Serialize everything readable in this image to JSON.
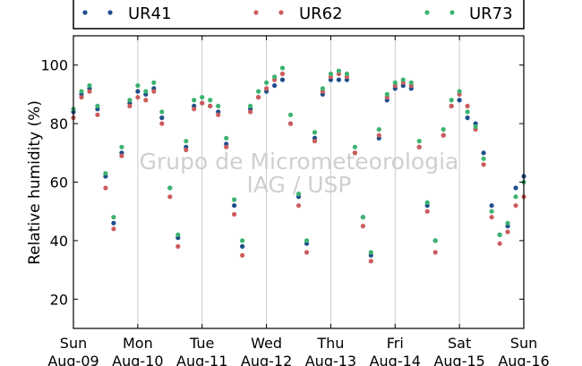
{
  "chart_data": {
    "type": "scatter",
    "title": "",
    "xlabel": "",
    "ylabel": "Relative humidity (%)",
    "ylim": [
      10,
      110
    ],
    "xlim": [
      "2009-08-09T00:00",
      "2009-08-16T00:00"
    ],
    "yticks": [
      20,
      40,
      60,
      80,
      100
    ],
    "xticks": [
      {
        "day": "Sun",
        "date": "Aug-09"
      },
      {
        "day": "Mon",
        "date": "Aug-10"
      },
      {
        "day": "Tue",
        "date": "Aug-11"
      },
      {
        "day": "Wed",
        "date": "Aug-12"
      },
      {
        "day": "Thu",
        "date": "Aug-13"
      },
      {
        "day": "Fri",
        "date": "Aug-14"
      },
      {
        "day": "Sat",
        "date": "Aug-15"
      },
      {
        "day": "Sun",
        "date": "Aug-16"
      }
    ],
    "grid": "vertical",
    "legend": "top, above plot",
    "watermark": [
      "Grupo de Micrometeorologia",
      "IAG / USP"
    ],
    "series": [
      {
        "name": "UR41",
        "color": "#1f4e8c",
        "points": [
          [
            "2009-08-09T00:00",
            84
          ],
          [
            "2009-08-09T03:00",
            90
          ],
          [
            "2009-08-09T06:00",
            92
          ],
          [
            "2009-08-09T09:00",
            85
          ],
          [
            "2009-08-09T12:00",
            62
          ],
          [
            "2009-08-09T15:00",
            46
          ],
          [
            "2009-08-09T18:00",
            70
          ],
          [
            "2009-08-09T21:00",
            87
          ],
          [
            "2009-08-10T00:00",
            91
          ],
          [
            "2009-08-10T03:00",
            90
          ],
          [
            "2009-08-10T06:00",
            92
          ],
          [
            "2009-08-10T09:00",
            82
          ],
          [
            "2009-08-10T12:00",
            58
          ],
          [
            "2009-08-10T15:00",
            41
          ],
          [
            "2009-08-10T18:00",
            72
          ],
          [
            "2009-08-10T21:00",
            86
          ],
          [
            "2009-08-11T00:00",
            87
          ],
          [
            "2009-08-11T03:00",
            86
          ],
          [
            "2009-08-11T06:00",
            84
          ],
          [
            "2009-08-11T09:00",
            73
          ],
          [
            "2009-08-11T12:00",
            52
          ],
          [
            "2009-08-11T15:00",
            38
          ],
          [
            "2009-08-11T18:00",
            85
          ],
          [
            "2009-08-11T21:00",
            89
          ],
          [
            "2009-08-12T00:00",
            91
          ],
          [
            "2009-08-12T03:00",
            93
          ],
          [
            "2009-08-12T06:00",
            95
          ],
          [
            "2009-08-12T09:00",
            80
          ],
          [
            "2009-08-12T12:00",
            55
          ],
          [
            "2009-08-12T15:00",
            39
          ],
          [
            "2009-08-12T18:00",
            75
          ],
          [
            "2009-08-12T21:00",
            90
          ],
          [
            "2009-08-13T00:00",
            95
          ],
          [
            "2009-08-13T03:00",
            95
          ],
          [
            "2009-08-13T06:00",
            95
          ],
          [
            "2009-08-13T09:00",
            70
          ],
          [
            "2009-08-13T12:00",
            48
          ],
          [
            "2009-08-13T15:00",
            35
          ],
          [
            "2009-08-13T18:00",
            75
          ],
          [
            "2009-08-13T21:00",
            88
          ],
          [
            "2009-08-14T00:00",
            92
          ],
          [
            "2009-08-14T03:00",
            93
          ],
          [
            "2009-08-14T06:00",
            92
          ],
          [
            "2009-08-14T09:00",
            72
          ],
          [
            "2009-08-14T12:00",
            52
          ],
          [
            "2009-08-14T15:00",
            40
          ],
          [
            "2009-08-14T18:00",
            76
          ],
          [
            "2009-08-14T21:00",
            86
          ],
          [
            "2009-08-15T00:00",
            88
          ],
          [
            "2009-08-15T03:00",
            82
          ],
          [
            "2009-08-15T06:00",
            80
          ],
          [
            "2009-08-15T09:00",
            70
          ],
          [
            "2009-08-15T12:00",
            52
          ],
          [
            "2009-08-15T15:00",
            42
          ],
          [
            "2009-08-15T18:00",
            45
          ],
          [
            "2009-08-15T21:00",
            58
          ],
          [
            "2009-08-16T00:00",
            62
          ]
        ]
      },
      {
        "name": "UR62",
        "color": "#cd5c5c",
        "points": [
          [
            "2009-08-09T00:00",
            82
          ],
          [
            "2009-08-09T03:00",
            89
          ],
          [
            "2009-08-09T06:00",
            91
          ],
          [
            "2009-08-09T09:00",
            83
          ],
          [
            "2009-08-09T12:00",
            58
          ],
          [
            "2009-08-09T15:00",
            44
          ],
          [
            "2009-08-09T18:00",
            69
          ],
          [
            "2009-08-09T21:00",
            86
          ],
          [
            "2009-08-10T00:00",
            89
          ],
          [
            "2009-08-10T03:00",
            88
          ],
          [
            "2009-08-10T06:00",
            91
          ],
          [
            "2009-08-10T09:00",
            80
          ],
          [
            "2009-08-10T12:00",
            55
          ],
          [
            "2009-08-10T15:00",
            38
          ],
          [
            "2009-08-10T18:00",
            71
          ],
          [
            "2009-08-10T21:00",
            85
          ],
          [
            "2009-08-11T00:00",
            87
          ],
          [
            "2009-08-11T03:00",
            86
          ],
          [
            "2009-08-11T06:00",
            83
          ],
          [
            "2009-08-11T09:00",
            72
          ],
          [
            "2009-08-11T12:00",
            49
          ],
          [
            "2009-08-11T15:00",
            35
          ],
          [
            "2009-08-11T18:00",
            84
          ],
          [
            "2009-08-11T21:00",
            89
          ],
          [
            "2009-08-12T00:00",
            92
          ],
          [
            "2009-08-12T03:00",
            95
          ],
          [
            "2009-08-12T06:00",
            97
          ],
          [
            "2009-08-12T09:00",
            80
          ],
          [
            "2009-08-12T12:00",
            52
          ],
          [
            "2009-08-12T15:00",
            36
          ],
          [
            "2009-08-12T18:00",
            74
          ],
          [
            "2009-08-12T21:00",
            91
          ],
          [
            "2009-08-13T00:00",
            96
          ],
          [
            "2009-08-13T03:00",
            97
          ],
          [
            "2009-08-13T06:00",
            96
          ],
          [
            "2009-08-13T09:00",
            70
          ],
          [
            "2009-08-13T12:00",
            45
          ],
          [
            "2009-08-13T15:00",
            33
          ],
          [
            "2009-08-13T18:00",
            76
          ],
          [
            "2009-08-13T21:00",
            89
          ],
          [
            "2009-08-14T00:00",
            93
          ],
          [
            "2009-08-14T03:00",
            94
          ],
          [
            "2009-08-14T06:00",
            93
          ],
          [
            "2009-08-14T09:00",
            72
          ],
          [
            "2009-08-14T12:00",
            50
          ],
          [
            "2009-08-14T15:00",
            36
          ],
          [
            "2009-08-14T18:00",
            76
          ],
          [
            "2009-08-14T21:00",
            86
          ],
          [
            "2009-08-15T00:00",
            90
          ],
          [
            "2009-08-15T03:00",
            86
          ],
          [
            "2009-08-15T06:00",
            78
          ],
          [
            "2009-08-15T09:00",
            66
          ],
          [
            "2009-08-15T12:00",
            48
          ],
          [
            "2009-08-15T15:00",
            39
          ],
          [
            "2009-08-15T18:00",
            43
          ],
          [
            "2009-08-15T21:00",
            52
          ],
          [
            "2009-08-16T00:00",
            55
          ]
        ]
      },
      {
        "name": "UR73",
        "color": "#3cb371",
        "points": [
          [
            "2009-08-09T00:00",
            85
          ],
          [
            "2009-08-09T03:00",
            91
          ],
          [
            "2009-08-09T06:00",
            93
          ],
          [
            "2009-08-09T09:00",
            86
          ],
          [
            "2009-08-09T12:00",
            63
          ],
          [
            "2009-08-09T15:00",
            48
          ],
          [
            "2009-08-09T18:00",
            72
          ],
          [
            "2009-08-09T21:00",
            88
          ],
          [
            "2009-08-10T00:00",
            93
          ],
          [
            "2009-08-10T03:00",
            91
          ],
          [
            "2009-08-10T06:00",
            94
          ],
          [
            "2009-08-10T09:00",
            84
          ],
          [
            "2009-08-10T12:00",
            58
          ],
          [
            "2009-08-10T15:00",
            42
          ],
          [
            "2009-08-10T18:00",
            74
          ],
          [
            "2009-08-10T21:00",
            88
          ],
          [
            "2009-08-11T00:00",
            89
          ],
          [
            "2009-08-11T03:00",
            88
          ],
          [
            "2009-08-11T06:00",
            86
          ],
          [
            "2009-08-11T09:00",
            75
          ],
          [
            "2009-08-11T12:00",
            54
          ],
          [
            "2009-08-11T15:00",
            40
          ],
          [
            "2009-08-11T18:00",
            86
          ],
          [
            "2009-08-11T21:00",
            91
          ],
          [
            "2009-08-12T00:00",
            94
          ],
          [
            "2009-08-12T03:00",
            96
          ],
          [
            "2009-08-12T06:00",
            99
          ],
          [
            "2009-08-12T09:00",
            83
          ],
          [
            "2009-08-12T12:00",
            56
          ],
          [
            "2009-08-12T15:00",
            40
          ],
          [
            "2009-08-12T18:00",
            77
          ],
          [
            "2009-08-12T21:00",
            92
          ],
          [
            "2009-08-13T00:00",
            97
          ],
          [
            "2009-08-13T03:00",
            98
          ],
          [
            "2009-08-13T06:00",
            97
          ],
          [
            "2009-08-13T09:00",
            72
          ],
          [
            "2009-08-13T12:00",
            48
          ],
          [
            "2009-08-13T15:00",
            36
          ],
          [
            "2009-08-13T18:00",
            78
          ],
          [
            "2009-08-13T21:00",
            90
          ],
          [
            "2009-08-14T00:00",
            94
          ],
          [
            "2009-08-14T03:00",
            95
          ],
          [
            "2009-08-14T06:00",
            94
          ],
          [
            "2009-08-14T09:00",
            74
          ],
          [
            "2009-08-14T12:00",
            53
          ],
          [
            "2009-08-14T15:00",
            40
          ],
          [
            "2009-08-14T18:00",
            78
          ],
          [
            "2009-08-14T21:00",
            88
          ],
          [
            "2009-08-15T00:00",
            91
          ],
          [
            "2009-08-15T03:00",
            84
          ],
          [
            "2009-08-15T06:00",
            79
          ],
          [
            "2009-08-15T09:00",
            68
          ],
          [
            "2009-08-15T12:00",
            50
          ],
          [
            "2009-08-15T15:00",
            42
          ],
          [
            "2009-08-15T18:00",
            46
          ],
          [
            "2009-08-15T21:00",
            55
          ],
          [
            "2009-08-16T00:00",
            60
          ]
        ]
      }
    ]
  }
}
